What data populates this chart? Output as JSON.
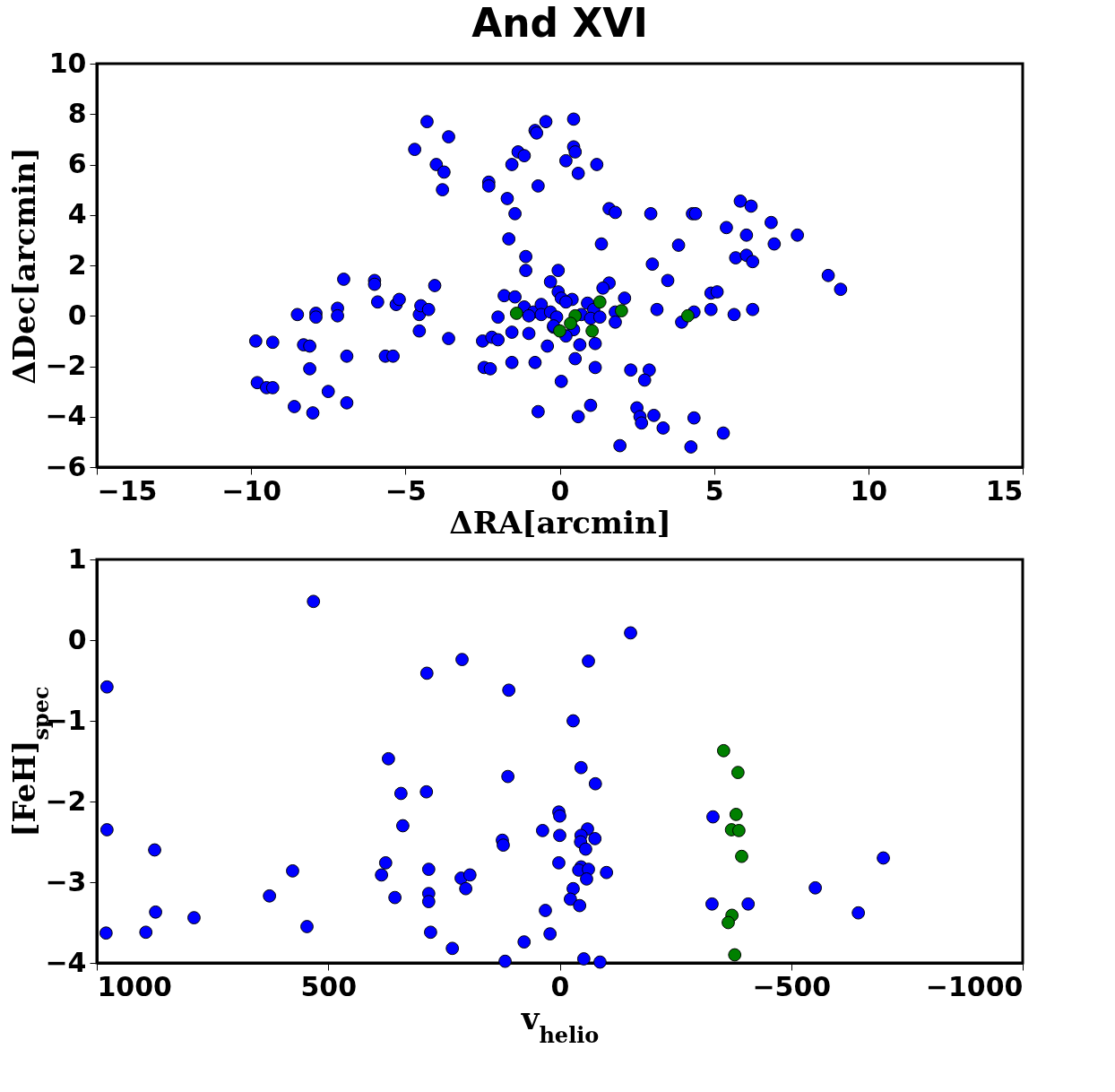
{
  "chart_data": [
    {
      "type": "scatter",
      "title": "And XVI",
      "xlabel": "ΔRA[arcmin]",
      "ylabel": "ΔDec[arcmin]",
      "xlim": [
        -15,
        15
      ],
      "ylim": [
        -6,
        10
      ],
      "xticks": [
        -15,
        -10,
        -5,
        0,
        5,
        10,
        15
      ],
      "yticks": [
        -6,
        -4,
        -2,
        0,
        2,
        4,
        6,
        8,
        10
      ],
      "marker": "circle",
      "series": [
        {
          "color": "#0000ff",
          "x": [
            -9.85,
            -9.3,
            -9.8,
            -9.5,
            -9.3,
            -8.6,
            -8.0,
            -8.5,
            -7.9,
            -7.9,
            -7.2,
            -7.2,
            -8.3,
            -8.1,
            -8.1,
            -7.5,
            -6.9,
            -6.9,
            -7.0,
            -6.0,
            -6.0,
            -5.9,
            -5.3,
            -5.2,
            -5.65,
            -5.4,
            -4.55,
            -4.5,
            -4.25,
            -4.55,
            -4.05,
            -3.6,
            -4.3,
            -4.7,
            -3.6,
            -4.0,
            -3.75,
            -3.8,
            -2.3,
            -2.3,
            -1.55,
            -1.35,
            -1.15,
            -0.8,
            -0.75,
            -0.45,
            -0.7,
            -1.7,
            -1.45,
            -1.65,
            -1.1,
            -1.1,
            -1.8,
            -1.45,
            -2.0,
            -1.55,
            -1.0,
            -2.5,
            -2.2,
            -2.0,
            -2.45,
            -2.25,
            -1.55,
            -0.8,
            -0.7,
            -0.4,
            -0.3,
            -0.05,
            -1.15,
            -0.85,
            -0.6,
            -0.6,
            -1.0,
            -0.2,
            0.05,
            0.45,
            0.45,
            0.5,
            0.2,
            1.2,
            0.6,
            1.6,
            1.8,
            2.95,
            4.3,
            4.4,
            5.85,
            6.2,
            6.85,
            5.4,
            6.05,
            7.7,
            6.95,
            1.35,
            3.85,
            5.7,
            6.05,
            6.25,
            3.0,
            3.5,
            8.7,
            9.1,
            1.6,
            1.4,
            2.1,
            3.15,
            4.9,
            5.1,
            4.9,
            5.65,
            6.25,
            4.35,
            3.95,
            -0.05,
            0.05,
            0.4,
            0.2,
            0.9,
            1.1,
            -0.3,
            -0.1,
            0.7,
            1.0,
            1.3,
            1.8,
            1.8,
            -0.2,
            0.45,
            0.2,
            0.65,
            1.15,
            0.5,
            1.15,
            2.3,
            2.9,
            2.75,
            1.0,
            0.6,
            2.5,
            2.6,
            2.65,
            3.05,
            3.35,
            4.35,
            5.3,
            1.95,
            4.25
          ],
          "values": [
            -1.0,
            -1.05,
            -2.65,
            -2.85,
            -2.85,
            -3.6,
            -3.85,
            0.05,
            0.1,
            -0.05,
            0.3,
            0,
            -1.15,
            -1.2,
            -2.1,
            -3.0,
            -3.45,
            -1.6,
            1.45,
            1.4,
            1.25,
            0.55,
            0.45,
            0.65,
            -1.6,
            -1.6,
            0.05,
            0.4,
            0.25,
            -0.6,
            1.2,
            -0.9,
            7.7,
            6.6,
            7.1,
            6.0,
            5.7,
            5.0,
            5.3,
            5.15,
            6.0,
            6.5,
            6.35,
            7.35,
            7.25,
            7.7,
            5.15,
            4.65,
            4.05,
            3.05,
            2.35,
            1.8,
            0.8,
            0.75,
            -0.05,
            -0.65,
            -0.7,
            -1.0,
            -0.85,
            -0.95,
            -2.05,
            -2.1,
            -1.85,
            -1.85,
            -3.8,
            -1.2,
            1.35,
            1.8,
            0.35,
            0.15,
            0.45,
            0.05,
            0.0,
            -0.45,
            -2.6,
            7.8,
            6.7,
            6.5,
            6.15,
            6.0,
            5.65,
            4.25,
            4.1,
            4.05,
            4.05,
            4.05,
            4.55,
            4.35,
            3.7,
            3.5,
            3.2,
            3.2,
            2.85,
            2.85,
            2.8,
            2.3,
            2.4,
            2.15,
            2.05,
            1.4,
            1.6,
            1.05,
            1.3,
            1.1,
            0.7,
            0.25,
            0.9,
            0.95,
            0.25,
            0.05,
            0.25,
            0.15,
            -0.25,
            0.95,
            0.7,
            0.65,
            0.55,
            0.5,
            0.25,
            0.15,
            -0.05,
            0.05,
            -0.1,
            -0.05,
            0.15,
            -0.25,
            -0.4,
            -0.55,
            -0.8,
            -1.15,
            -1.1,
            -1.7,
            -2.05,
            -2.15,
            -2.15,
            -2.55,
            -3.55,
            -4.0,
            -3.65,
            -4.0,
            -4.25,
            -3.95,
            -4.45,
            -4.05,
            -4.65,
            -5.15,
            -5.2
          ]
        },
        {
          "color": "#008000",
          "x": [
            -1.4,
            4.15,
            1.3,
            2.0,
            0.5,
            0.35,
            0.0,
            1.05
          ],
          "values": [
            0.1,
            0.0,
            0.55,
            0.2,
            0.0,
            -0.3,
            -0.6,
            -0.6
          ]
        }
      ]
    },
    {
      "type": "scatter",
      "xlabel": "v$_{helio}$",
      "ylabel": "[FeH]$_{spec}$",
      "xlim": [
        1000,
        -1000
      ],
      "ylim": [
        -4,
        1
      ],
      "xticks": [
        1000,
        500,
        0,
        -500,
        -1000
      ],
      "yticks": [
        -4,
        -3,
        -2,
        -1,
        0,
        1
      ],
      "marker": "circle",
      "series": [
        {
          "color": "#0000ff",
          "x": [
            532,
            978,
            978,
            875,
            980,
            894,
            873,
            790,
            627,
            577,
            546,
            211,
            287,
            110,
            370,
            112,
            343,
            288,
            339,
            2,
            0,
            37,
            0,
            124,
            122,
            376,
            385,
            283,
            213,
            194,
            203,
            2,
            356,
            283,
            283,
            31,
            21,
            279,
            232,
            77,
            118,
            -153,
            -62,
            -29,
            -46,
            -77,
            -60,
            -46,
            -45,
            -56,
            -76,
            -46,
            -41,
            -62,
            -58,
            -101,
            -29,
            -23,
            -43,
            -52,
            -87,
            -331,
            -329,
            -407,
            -552,
            -699,
            -645
          ],
          "values": [
            0.48,
            -0.58,
            -2.35,
            -2.6,
            -3.63,
            -3.62,
            -3.37,
            -3.44,
            -3.17,
            -2.86,
            -3.55,
            -0.24,
            -0.41,
            -0.62,
            -1.47,
            -1.69,
            -1.9,
            -1.88,
            -2.3,
            -2.13,
            -2.18,
            -2.36,
            -2.42,
            -2.48,
            -2.54,
            -2.76,
            -2.91,
            -2.84,
            -2.95,
            -2.91,
            -3.08,
            -2.76,
            -3.19,
            -3.14,
            -3.24,
            -3.35,
            -3.64,
            -3.62,
            -3.82,
            -3.74,
            -3.98,
            0.09,
            -0.26,
            -1.0,
            -1.58,
            -1.78,
            -2.34,
            -2.42,
            -2.5,
            -2.59,
            -2.46,
            -2.81,
            -2.85,
            -2.84,
            -2.96,
            -2.88,
            -3.08,
            -3.21,
            -3.29,
            -3.95,
            -3.99,
            -2.19,
            -3.27,
            -3.27,
            -3.07,
            -2.7,
            -3.38
          ]
        },
        {
          "color": "#008000",
          "x": [
            -354,
            -385,
            -381,
            -371,
            -387,
            -393,
            -372,
            -364,
            -378
          ],
          "values": [
            -1.37,
            -1.64,
            -2.16,
            -2.35,
            -2.36,
            -2.68,
            -3.41,
            -3.5,
            -3.9
          ]
        }
      ]
    }
  ]
}
